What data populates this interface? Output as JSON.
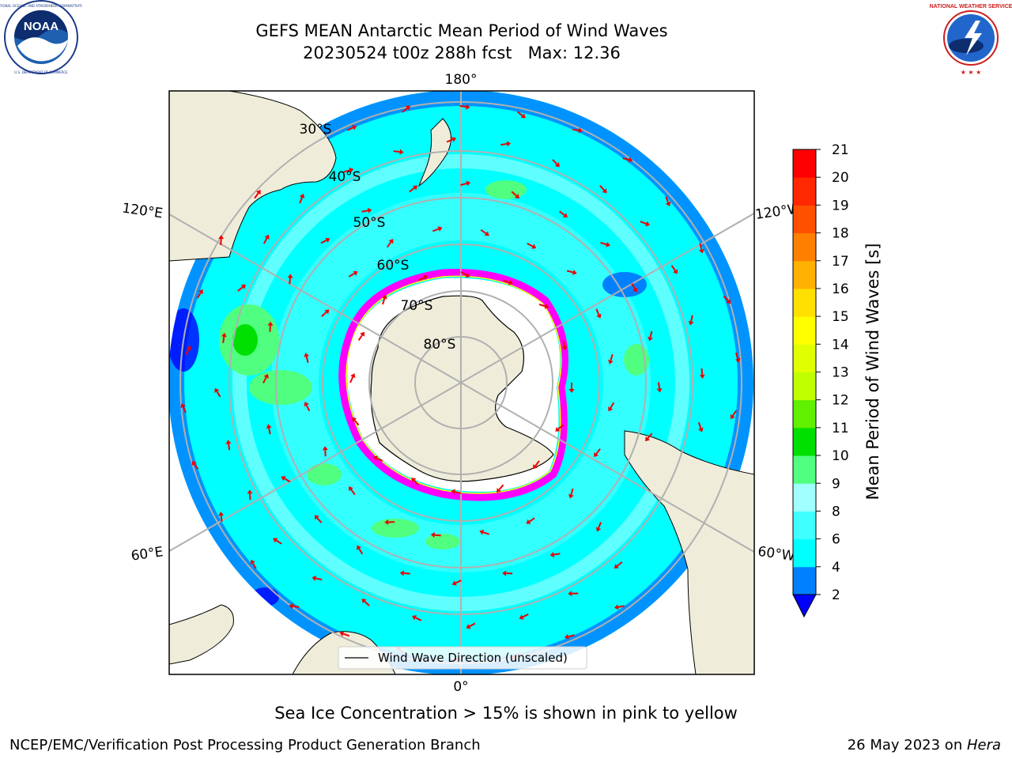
{
  "header": {
    "title": "GEFS MEAN Antarctic Mean Period of Wind Waves",
    "subtitle": "20230524 t00z 288h fcst   Max: 12.36"
  },
  "logos": {
    "noaa_text": "NOAA",
    "noaa_ring_text": "NATIONAL OCEANIC AND ATMOSPHERIC ADMINISTRATION · U.S. DEPARTMENT OF COMMERCE",
    "nws_ring_text": "NATIONAL WEATHER SERVICE"
  },
  "map": {
    "projection": "south polar stereographic",
    "meridian_labels": {
      "top": "180°",
      "bottom": "0°",
      "left_upper": "120°E",
      "left_lower": "60°E",
      "right_upper": "120°W",
      "right_lower": "60°W"
    },
    "latitude_labels": [
      "30°S",
      "40°S",
      "50°S",
      "60°S",
      "70°S",
      "80°S"
    ],
    "legend": "Wind Wave Direction (unscaled)",
    "colors": {
      "ocean_base": "#00ffff",
      "land": "#efedda",
      "arrow": "#ee0000",
      "ice": "#ff00ff",
      "grid": "#b0b0b0"
    }
  },
  "colorbar": {
    "label": "Mean Period of Wind Waves [s]",
    "ticks": [
      "2",
      "4",
      "6",
      "8",
      "9",
      "10",
      "11",
      "12",
      "13",
      "14",
      "15",
      "16",
      "17",
      "18",
      "19",
      "20",
      "21"
    ],
    "colors": [
      "#0080ff",
      "#00ffff",
      "#40ffff",
      "#a0ffff",
      "#50ff80",
      "#00e000",
      "#60f000",
      "#c0ff00",
      "#e0ff00",
      "#ffff00",
      "#ffe000",
      "#ffb000",
      "#ff8000",
      "#ff5000",
      "#ff2800",
      "#ff0000"
    ],
    "extend_color": "#0000ff"
  },
  "caption": "Sea Ice Concentration > 15% is shown in pink to yellow",
  "footer": {
    "left": "NCEP/EMC/Verification Post Processing Product Generation Branch",
    "right_prefix": "26 May 2023 on ",
    "right_host": "Hera"
  }
}
